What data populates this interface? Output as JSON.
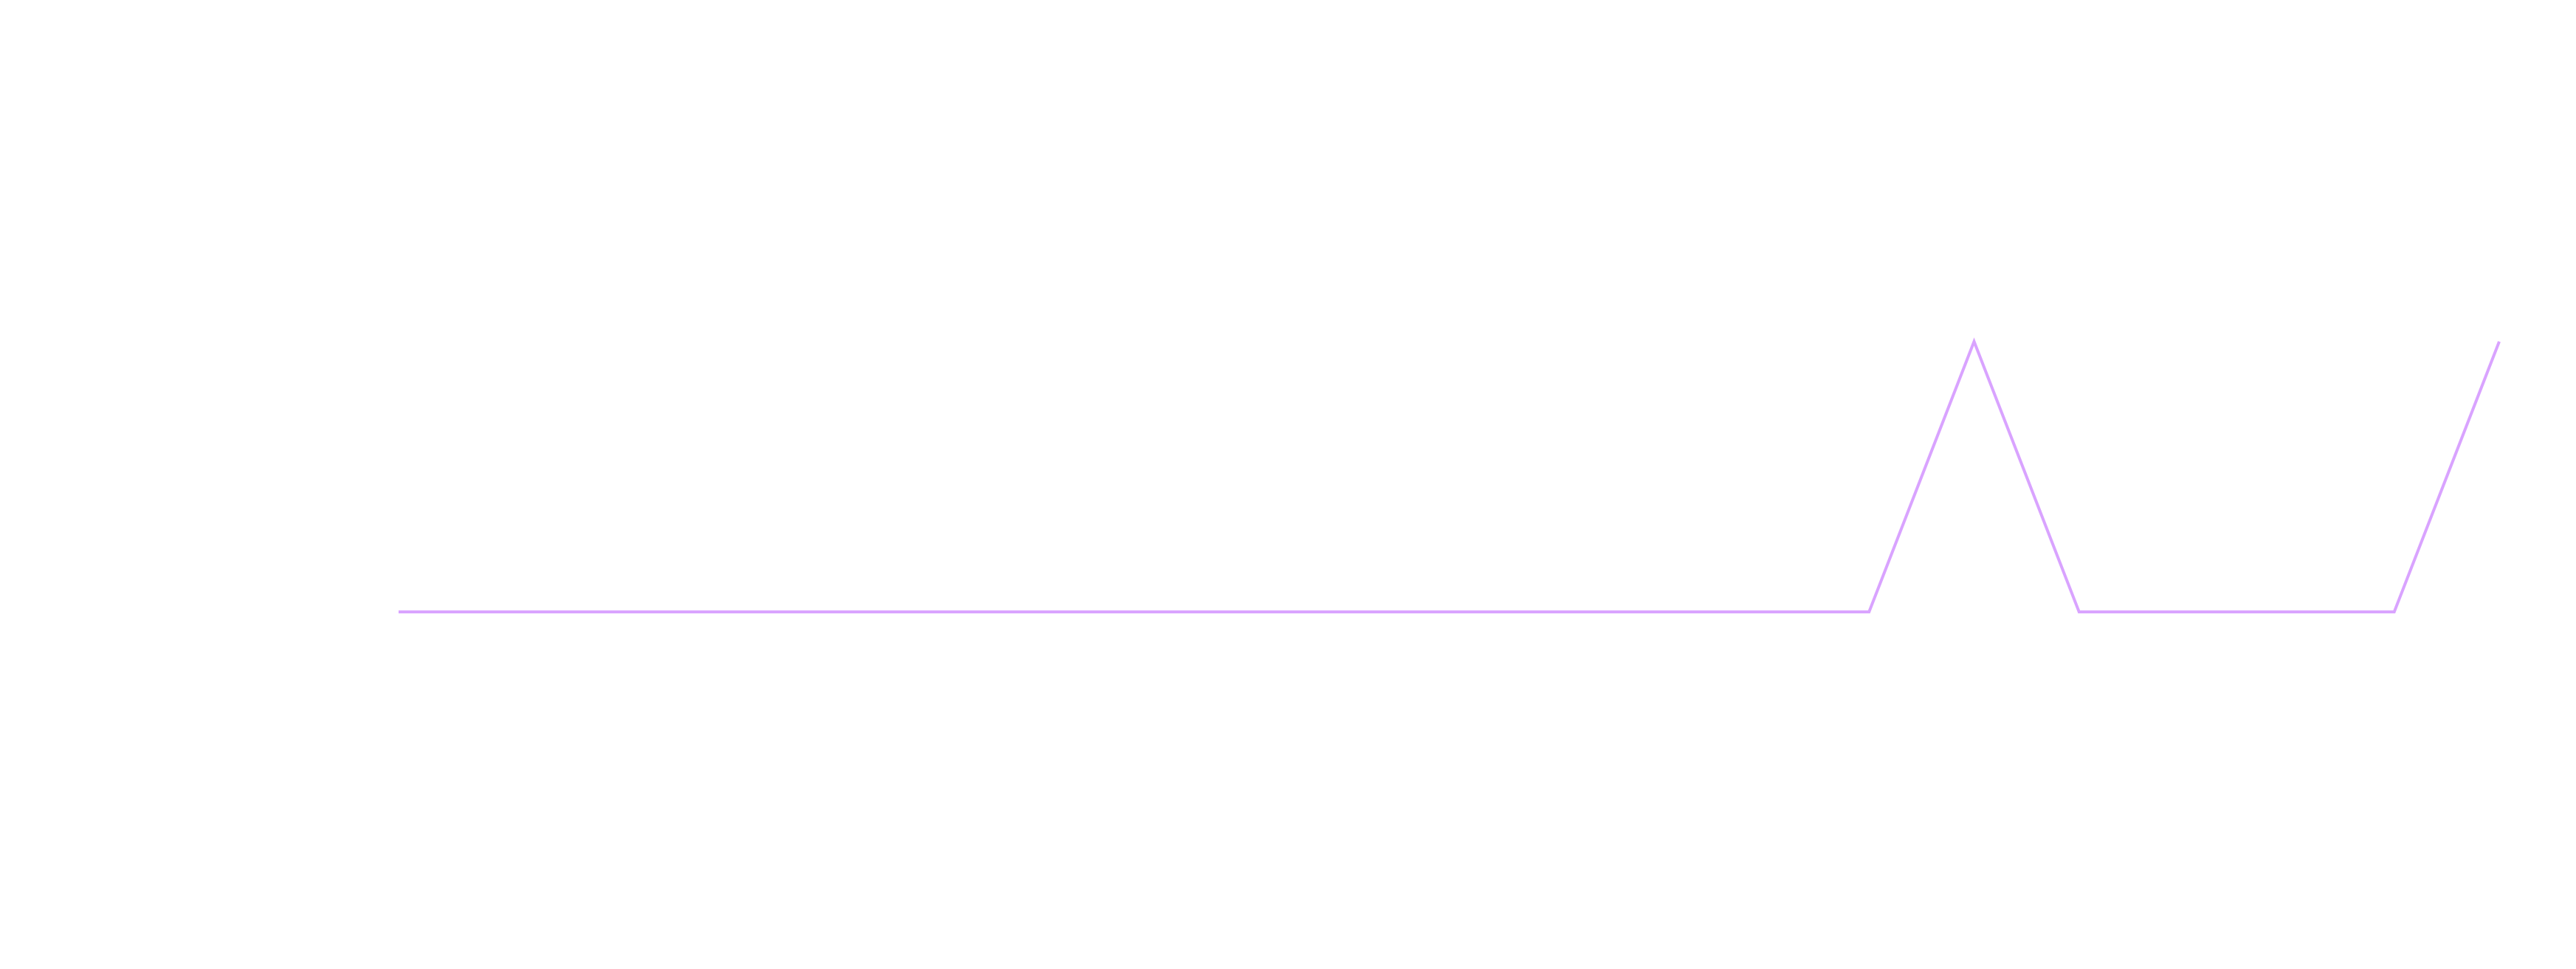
{
  "chart_data": {
    "type": "line",
    "title": "",
    "xlabel": "",
    "ylabel": "",
    "grid": false,
    "legend": "none",
    "x": [
      0,
      1,
      2,
      3,
      4,
      5,
      6,
      7,
      8,
      9,
      10,
      11,
      12,
      13,
      14,
      15,
      16,
      17,
      18,
      19,
      20
    ],
    "series": [
      {
        "color": "#d9a3ff",
        "values": [
          0,
          0,
          0,
          0,
          0,
          0,
          0,
          0,
          0,
          0,
          0,
          0,
          0,
          0,
          0,
          1,
          0,
          0,
          0,
          0,
          1
        ]
      }
    ],
    "xlim": [
      0,
      20
    ],
    "ylim": [
      -0.6,
      1.6
    ]
  }
}
